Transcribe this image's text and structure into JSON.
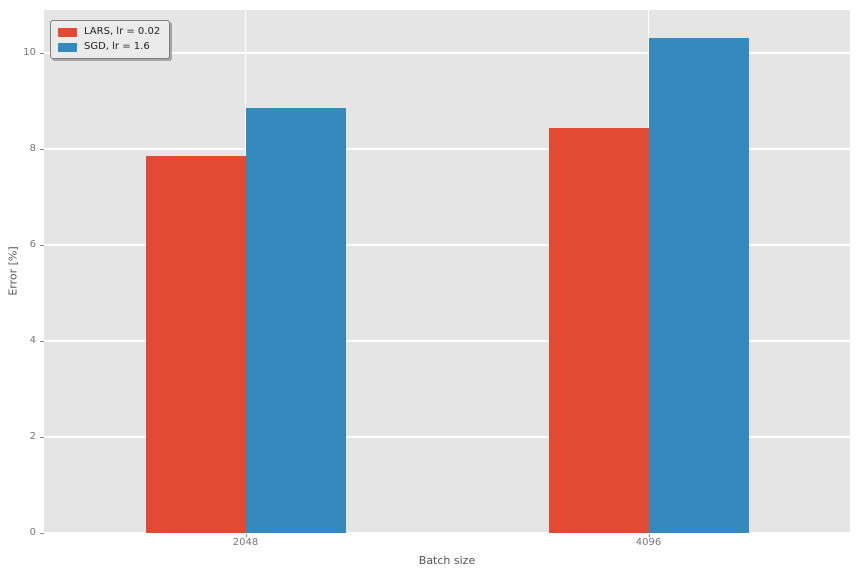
{
  "chart_data": {
    "type": "bar",
    "title": "",
    "xlabel": "Batch size",
    "ylabel": "Error [%]",
    "categories": [
      "2048",
      "4096"
    ],
    "series": [
      {
        "name": "LARS, lr = 0.02",
        "color": "#E24A33",
        "values": [
          7.86,
          8.44
        ]
      },
      {
        "name": "SGD, lr = 1.6",
        "color": "#348ABD",
        "values": [
          8.86,
          10.31
        ]
      }
    ],
    "ylim": [
      0,
      10.9
    ],
    "yticks": [
      0,
      2,
      4,
      6,
      8,
      10
    ],
    "grid": true,
    "legend_position": "upper-left",
    "colors": {
      "plot_background": "#E5E5E5",
      "grid": "#FFFFFF",
      "tick_label": "#777777",
      "tick_mark": "#888888",
      "axis_label": "#555555",
      "legend_background": "#EBEBEB",
      "legend_border": "#7F7F7F"
    }
  }
}
